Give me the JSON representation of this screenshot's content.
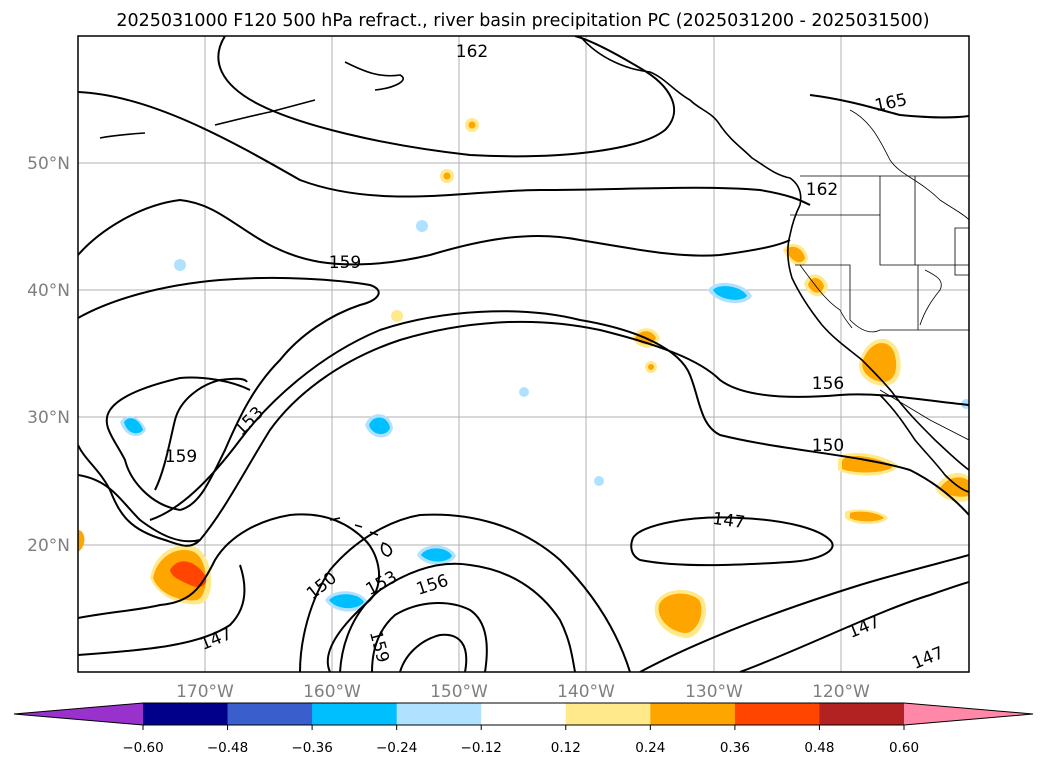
{
  "title": "2025031000 F120 500 hPa refract., river basin precipitation PC (2025031200 - 2025031500)",
  "map": {
    "lat_labels": [
      "50°N",
      "40°N",
      "30°N",
      "20°N"
    ],
    "lon_labels": [
      "170°W",
      "160°W",
      "150°W",
      "140°W",
      "130°W",
      "120°W"
    ],
    "contour_labels": [
      "162",
      "165",
      "162",
      "159",
      "153",
      "156",
      "159",
      "150",
      "147",
      "150",
      "153",
      "156",
      "159",
      "147",
      "147",
      "147"
    ],
    "grid_color": "#b0b0b0",
    "contour_color": "#000000"
  },
  "colorbar": {
    "ticks": [
      "−0.60",
      "−0.48",
      "−0.36",
      "−0.24",
      "−0.12",
      "0.12",
      "0.24",
      "0.36",
      "0.48",
      "0.60"
    ],
    "colors": [
      "#9932cc",
      "#00008b",
      "#3a5fcd",
      "#00bfff",
      "#b0e2ff",
      "#ffffff",
      "#ffe98a",
      "#ffa500",
      "#ff4500",
      "#b22222",
      "#ff88a8"
    ]
  }
}
